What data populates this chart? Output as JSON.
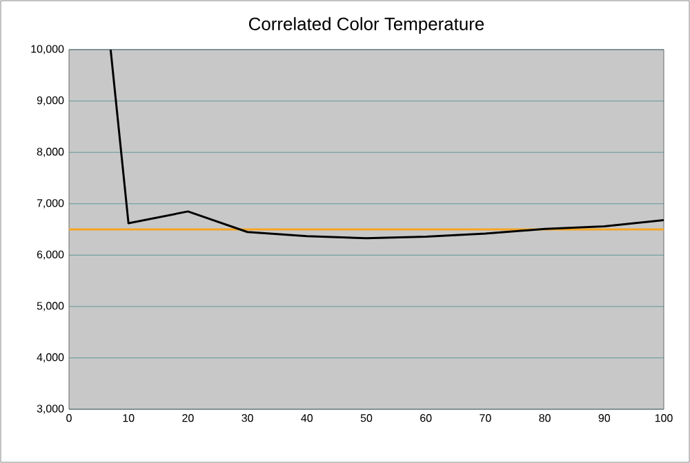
{
  "chart_data": {
    "type": "line",
    "title": "Correlated Color Temperature",
    "x": [
      7,
      10,
      20,
      30,
      40,
      50,
      60,
      70,
      80,
      90,
      100
    ],
    "series": [
      {
        "color": "#000000",
        "values": [
          10000,
          6620,
          6850,
          6450,
          6370,
          6330,
          6360,
          6420,
          6510,
          6560,
          6680
        ]
      }
    ],
    "xlim": [
      0,
      100
    ],
    "xticks": [
      0,
      10,
      20,
      30,
      40,
      50,
      60,
      70,
      80,
      90,
      100
    ],
    "ylim": [
      3000,
      10000
    ],
    "yticks": [
      {
        "value": 3000,
        "label": "3,000"
      },
      {
        "value": 4000,
        "label": "4,000"
      },
      {
        "value": 5000,
        "label": "5,000"
      },
      {
        "value": 6000,
        "label": "6,000"
      },
      {
        "value": 7000,
        "label": "7,000"
      },
      {
        "value": 8000,
        "label": "8,000"
      },
      {
        "value": 9000,
        "label": "9,000"
      },
      {
        "value": 10000,
        "label": "10,000"
      }
    ],
    "ref_lines": [
      {
        "axis": "y",
        "value": 6500,
        "color": "#f5a623"
      }
    ],
    "grid": "y",
    "marker": "none",
    "line_style": "solid"
  }
}
